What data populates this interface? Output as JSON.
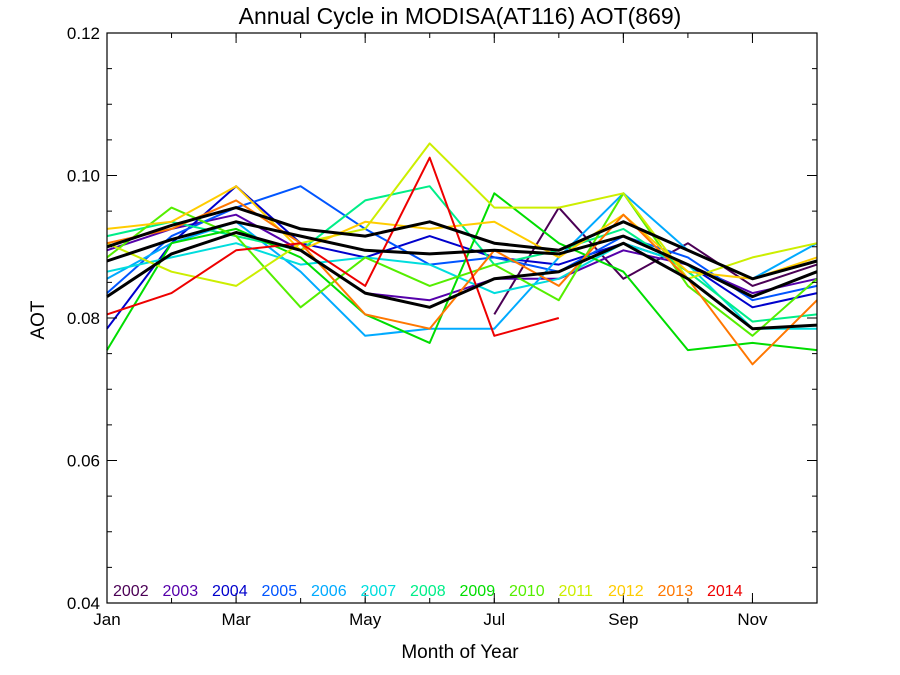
{
  "chart_data": {
    "type": "line",
    "title": "Annual Cycle in MODISA(AT116) AOT(869)",
    "xlabel": "Month of Year",
    "ylabel": "AOT",
    "xlim": [
      1,
      12
    ],
    "ylim": [
      0.04,
      0.12
    ],
    "x_ticks": [
      {
        "value": 1,
        "label": "Jan"
      },
      {
        "value": 3,
        "label": "Mar"
      },
      {
        "value": 5,
        "label": "May"
      },
      {
        "value": 7,
        "label": "Jul"
      },
      {
        "value": 9,
        "label": "Sep"
      },
      {
        "value": 11,
        "label": "Nov"
      }
    ],
    "y_ticks": [
      {
        "value": 0.04,
        "label": "0.04"
      },
      {
        "value": 0.06,
        "label": "0.06"
      },
      {
        "value": 0.08,
        "label": "0.08"
      },
      {
        "value": 0.1,
        "label": "0.10"
      },
      {
        "value": 0.12,
        "label": "0.12"
      }
    ],
    "legend_position": "bottom-left",
    "series": [
      {
        "name": "2002",
        "color": "#4b0055",
        "x": [
          7,
          8,
          9,
          10,
          11,
          12
        ],
        "values": [
          0.0805,
          0.0955,
          0.0855,
          0.0905,
          0.0845,
          0.0875
        ]
      },
      {
        "name": "2003",
        "color": "#5500aa",
        "x": [
          1,
          2,
          3,
          4,
          5,
          6,
          7,
          8,
          9,
          10,
          11,
          12
        ],
        "values": [
          0.0895,
          0.0925,
          0.0945,
          0.0895,
          0.0835,
          0.0825,
          0.0855,
          0.0855,
          0.0895,
          0.0875,
          0.0835,
          0.0855
        ]
      },
      {
        "name": "2004",
        "color": "#0000cc",
        "x": [
          1,
          2,
          3,
          4,
          5,
          6,
          7,
          8,
          9,
          10,
          11,
          12
        ],
        "values": [
          0.0785,
          0.0905,
          0.0985,
          0.0905,
          0.0885,
          0.0915,
          0.0885,
          0.0875,
          0.0905,
          0.0875,
          0.0815,
          0.0835
        ]
      },
      {
        "name": "2005",
        "color": "#0055ff",
        "x": [
          1,
          2,
          3,
          4,
          5,
          6,
          7,
          8,
          9,
          10,
          11,
          12
        ],
        "values": [
          0.0835,
          0.0915,
          0.0955,
          0.0985,
          0.0925,
          0.0875,
          0.0885,
          0.0865,
          0.0915,
          0.0885,
          0.0825,
          0.0845
        ]
      },
      {
        "name": "2006",
        "color": "#00aaff",
        "x": [
          1,
          2,
          3,
          4,
          5,
          6,
          7,
          8,
          9,
          10,
          11,
          12
        ],
        "values": [
          0.0855,
          0.0905,
          0.0935,
          0.0865,
          0.0775,
          0.0785,
          0.0785,
          0.0885,
          0.0975,
          0.0895,
          0.0855,
          0.0905
        ]
      },
      {
        "name": "2007",
        "color": "#00dddd",
        "x": [
          1,
          2,
          3,
          4,
          5,
          6,
          7,
          8,
          9,
          10,
          11,
          12
        ],
        "values": [
          0.0865,
          0.0885,
          0.0905,
          0.0875,
          0.0885,
          0.0875,
          0.0835,
          0.0855,
          0.0905,
          0.0875,
          0.0785,
          0.0785
        ]
      },
      {
        "name": "2008",
        "color": "#00ee88",
        "x": [
          1,
          2,
          3,
          4,
          5,
          6,
          7,
          8,
          9,
          10,
          11,
          12
        ],
        "values": [
          0.0915,
          0.0935,
          0.0915,
          0.0895,
          0.0965,
          0.0985,
          0.0875,
          0.0895,
          0.0925,
          0.0865,
          0.0795,
          0.0805
        ]
      },
      {
        "name": "2009",
        "color": "#00dd00",
        "x": [
          1,
          2,
          3,
          4,
          5,
          6,
          7,
          8,
          9,
          10,
          11,
          12
        ],
        "values": [
          0.0755,
          0.0905,
          0.0925,
          0.0885,
          0.0805,
          0.0765,
          0.0975,
          0.0905,
          0.0865,
          0.0755,
          0.0765,
          0.0755
        ]
      },
      {
        "name": "2010",
        "color": "#55ee00",
        "x": [
          1,
          2,
          3,
          4,
          5,
          6,
          7,
          8,
          9,
          10,
          11,
          12
        ],
        "values": [
          0.0885,
          0.0955,
          0.0915,
          0.0815,
          0.0885,
          0.0845,
          0.0875,
          0.0825,
          0.0975,
          0.0845,
          0.0775,
          0.0855
        ]
      },
      {
        "name": "2011",
        "color": "#ccee00",
        "x": [
          1,
          2,
          3,
          4,
          5,
          6,
          7,
          8,
          9,
          10,
          11,
          12
        ],
        "values": [
          0.0905,
          0.0865,
          0.0845,
          0.0905,
          0.0925,
          0.1045,
          0.0955,
          0.0955,
          0.0975,
          0.0855,
          0.0885,
          0.0905
        ]
      },
      {
        "name": "2012",
        "color": "#ffcc00",
        "x": [
          1,
          2,
          3,
          4,
          5,
          6,
          7,
          8,
          9,
          10,
          11,
          12
        ],
        "values": [
          0.0925,
          0.0935,
          0.0985,
          0.0895,
          0.0935,
          0.0925,
          0.0935,
          0.0885,
          0.0945,
          0.0865,
          0.0855,
          0.0885
        ]
      },
      {
        "name": "2013",
        "color": "#ff7700",
        "x": [
          1,
          2,
          3,
          4,
          5,
          6,
          7,
          8,
          9,
          10,
          11,
          12
        ],
        "values": [
          0.0905,
          0.0925,
          0.0965,
          0.0905,
          0.0805,
          0.0785,
          0.0895,
          0.0845,
          0.0945,
          0.0855,
          0.0735,
          0.0825
        ]
      },
      {
        "name": "2014",
        "color": "#ee0000",
        "x": [
          1,
          2,
          3,
          4,
          5,
          6,
          7,
          8
        ],
        "values": [
          0.0805,
          0.0835,
          0.0895,
          0.0905,
          0.0845,
          0.1025,
          0.0775,
          0.08
        ]
      },
      {
        "color": "#000000",
        "x": [
          1,
          2,
          3,
          4,
          5,
          6,
          7,
          8,
          9,
          10,
          11,
          12
        ],
        "values": [
          0.083,
          0.089,
          0.092,
          0.0895,
          0.0835,
          0.0815,
          0.0855,
          0.0865,
          0.0905,
          0.0855,
          0.0785,
          0.079
        ]
      },
      {
        "color": "#000000",
        "x": [
          1,
          2,
          3,
          4,
          5,
          6,
          7,
          8,
          9,
          10,
          11,
          12
        ],
        "values": [
          0.088,
          0.091,
          0.0935,
          0.0915,
          0.0895,
          0.089,
          0.0895,
          0.089,
          0.0915,
          0.0875,
          0.083,
          0.0865
        ]
      },
      {
        "color": "#000000",
        "x": [
          1,
          2,
          3,
          4,
          5,
          6,
          7,
          8,
          9,
          10,
          11,
          12
        ],
        "values": [
          0.09,
          0.093,
          0.0955,
          0.0925,
          0.0915,
          0.0935,
          0.0905,
          0.0895,
          0.0935,
          0.0895,
          0.0855,
          0.088
        ]
      }
    ]
  }
}
